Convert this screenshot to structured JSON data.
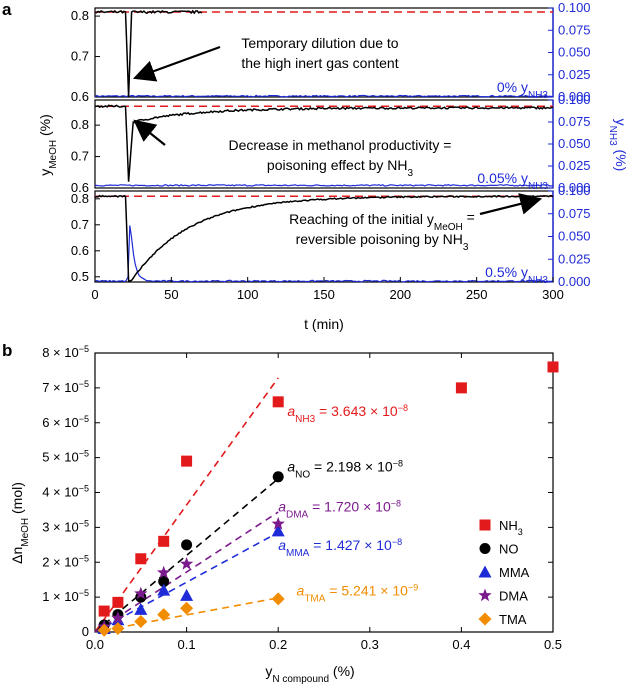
{
  "panel_labels": {
    "a": "a",
    "b": "b"
  },
  "colors": {
    "red": "#e31a1c",
    "blue": "#1f2bd6",
    "black": "#000000",
    "purple": "#7b1a8c",
    "orange": "#f28c00",
    "axisBlue": "#1f2bd6"
  },
  "chart_data": [
    {
      "type": "line",
      "panel": "a",
      "xlabel": "t (min)",
      "ylabel_left_base": "y",
      "ylabel_left_sub": "MeOH",
      "ylabel_left_unit": " (%)",
      "ylabel_right_base": "y",
      "ylabel_right_sub": "NH3",
      "ylabel_right_unit": " (%)",
      "xlim": [
        0,
        300
      ],
      "x_ticks": [
        "0",
        "50",
        "100",
        "150",
        "200",
        "250",
        "300"
      ],
      "right_ticks": [
        "0.000",
        "0.025",
        "0.050",
        "0.075",
        "0.100"
      ],
      "subpanels": [
        {
          "nh3_label_pct": "0%",
          "ylim_left": [
            0.6,
            0.82
          ],
          "left_ticks": [
            "0.6",
            "0.7",
            "0.8"
          ],
          "ylim_right": [
            0,
            0.1
          ],
          "reference_line": 0.81,
          "meoh": {
            "baseline": 0.81,
            "dip_time": 22,
            "dip_min": 0.6,
            "recovery": "instant",
            "data_end": 70
          },
          "nh3": {
            "baseline": 0.001,
            "peak": 0.001
          },
          "annotation": [
            "Temporary dilution due to",
            "the high inert gas content"
          ]
        },
        {
          "nh3_label_pct": "0.05%",
          "ylim_left": [
            0.6,
            0.88
          ],
          "left_ticks": [
            "0.6",
            "0.7",
            "0.8"
          ],
          "ylim_right": [
            0,
            0.1
          ],
          "reference_line": 0.86,
          "meoh": {
            "baseline": 0.86,
            "dip_time": 22,
            "dip_min": 0.62,
            "recovery": "partial",
            "end_value": 0.855
          },
          "nh3": {
            "baseline": 0.003,
            "peak": 0.003
          },
          "annotation": [
            "Decrease in methanol productivity =",
            "poisoning effect by NH3"
          ]
        },
        {
          "nh3_label_pct": "0.5%",
          "ylim_left": [
            0.48,
            0.83
          ],
          "left_ticks": [
            "0.5",
            "0.6",
            "0.7",
            "0.8"
          ],
          "ylim_right": [
            0,
            0.1
          ],
          "reference_line": 0.81,
          "meoh": {
            "baseline": 0.81,
            "dip_time": 22,
            "dip_min": 0.485,
            "recovery": "full",
            "end_value": 0.81
          },
          "nh3": {
            "baseline": 0.001,
            "peak": 0.07,
            "peak_time": 23
          },
          "annotation": [
            "Reaching of the initial yMeOH =",
            "reversible poisoning by NH3"
          ]
        }
      ]
    },
    {
      "type": "scatter",
      "panel": "b",
      "xlabel_base": "y",
      "xlabel_sub": "N compound",
      "xlabel_unit": " (%)",
      "ylabel_base": "Δn",
      "ylabel_sub": "MeOH",
      "ylabel_unit": " (mol)",
      "xlim": [
        0,
        0.5
      ],
      "ylim": [
        0,
        8e-05
      ],
      "x_ticks": [
        "0.0",
        "0.1",
        "0.2",
        "0.3",
        "0.4",
        "0.5"
      ],
      "y_ticks": [
        {
          "value": 0,
          "label": "0"
        },
        {
          "value": 1e-05,
          "label": "1 × 10",
          "exp": "−5"
        },
        {
          "value": 2e-05,
          "label": "2 × 10",
          "exp": "−5"
        },
        {
          "value": 3e-05,
          "label": "3 × 10",
          "exp": "−5"
        },
        {
          "value": 4e-05,
          "label": "4 × 10",
          "exp": "−5"
        },
        {
          "value": 5e-05,
          "label": "5 × 10",
          "exp": "−5"
        },
        {
          "value": 6e-05,
          "label": "6 × 10",
          "exp": "−5"
        },
        {
          "value": 7e-05,
          "label": "7 × 10",
          "exp": "−5"
        },
        {
          "value": 8e-05,
          "label": "8 × 10",
          "exp": "−5"
        }
      ],
      "series": [
        {
          "name": "NH3",
          "legend": "NH",
          "legend_sub": "3",
          "marker": "square",
          "color": "#e31a1c",
          "x": [
            0.01,
            0.025,
            0.05,
            0.075,
            0.1,
            0.2,
            0.4,
            0.5
          ],
          "y": [
            6e-06,
            8.5e-06,
            2.1e-05,
            2.6e-05,
            4.9e-05,
            6.6e-05,
            7e-05,
            7.6e-05
          ],
          "slope": 0.0003643,
          "fit_xmax": 0.2,
          "ann_a": "a",
          "ann_sub": "NH3",
          "ann_mid": " = 3.643 × 10",
          "ann_exp": "−8"
        },
        {
          "name": "NO",
          "legend": "NO",
          "legend_sub": "",
          "marker": "circle",
          "color": "#000000",
          "x": [
            0.01,
            0.025,
            0.05,
            0.075,
            0.1,
            0.2
          ],
          "y": [
            2e-06,
            5e-06,
            1e-05,
            1.45e-05,
            2.5e-05,
            4.45e-05
          ],
          "slope": 0.0002198,
          "fit_xmax": 0.2,
          "ann_a": "a",
          "ann_sub": "NO",
          "ann_mid": " = 2.198 × 10",
          "ann_exp": "−8"
        },
        {
          "name": "MMA",
          "legend": "MMA",
          "legend_sub": "",
          "marker": "triangle",
          "color": "#1f2bd6",
          "x": [
            0.01,
            0.025,
            0.05,
            0.075,
            0.1,
            0.2
          ],
          "y": [
            1e-06,
            3.5e-06,
            6.5e-06,
            1.2e-05,
            1.05e-05,
            2.9e-05
          ],
          "slope": 0.0001427,
          "fit_xmax": 0.2,
          "ann_a": "a",
          "ann_sub": "MMA",
          "ann_mid": " = 1.427 × 10",
          "ann_exp": "−8"
        },
        {
          "name": "DMA",
          "legend": "DMA",
          "legend_sub": "",
          "marker": "star",
          "color": "#7b1a8c",
          "x": [
            0.01,
            0.025,
            0.05,
            0.075,
            0.1,
            0.2
          ],
          "y": [
            1.5e-06,
            4e-06,
            1.1e-05,
            1.7e-05,
            1.95e-05,
            3.1e-05
          ],
          "slope": 0.000172,
          "fit_xmax": 0.2,
          "ann_a": "a",
          "ann_sub": "DMA",
          "ann_mid": " = 1.720 × 10",
          "ann_exp": "−8"
        },
        {
          "name": "TMA",
          "legend": "TMA",
          "legend_sub": "",
          "marker": "diamond",
          "color": "#f28c00",
          "x": [
            0.01,
            0.025,
            0.05,
            0.075,
            0.1,
            0.2
          ],
          "y": [
            5e-07,
            1e-06,
            3e-06,
            5e-06,
            6.8e-06,
            9.5e-06
          ],
          "fit_x": [
            0.01,
            0.2
          ],
          "fit_y": [
            5e-07,
            9.8e-06
          ],
          "ann_a": "a",
          "ann_sub": "TMA",
          "ann_mid": " = 5.241 × 10",
          "ann_exp": "−9"
        }
      ]
    }
  ]
}
